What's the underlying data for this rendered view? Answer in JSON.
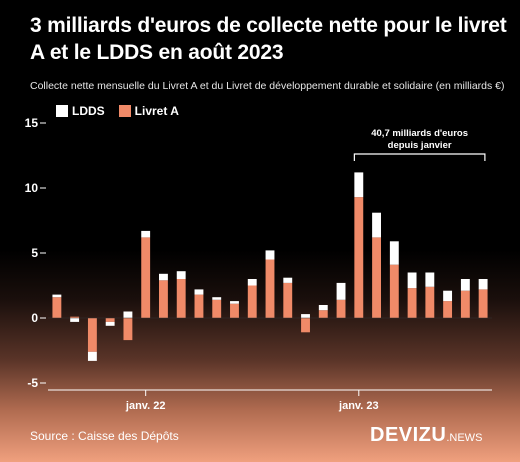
{
  "header": {
    "title": "3 milliards d'euros de collecte nette pour le livret A et le LDDS en août 2023",
    "subtitle": "Collecte nette mensuelle du Livret A et du Livret de développement durable et solidaire (en milliards €)"
  },
  "footer": {
    "source": "Source : Caisse des Dépôts",
    "logo_main": "DEVIZU",
    "logo_suffix": ".NEWS"
  },
  "colors": {
    "livret_a": "#f08a68",
    "ldds": "#ffffff",
    "axis_text": "#ffffff"
  },
  "chart_data": {
    "type": "bar",
    "stacked": true,
    "categories": [
      "2021-08",
      "2021-09",
      "2021-10",
      "2021-11",
      "2021-12",
      "2022-01",
      "2022-02",
      "2022-03",
      "2022-04",
      "2022-05",
      "2022-06",
      "2022-07",
      "2022-08",
      "2022-09",
      "2022-10",
      "2022-11",
      "2022-12",
      "2023-01",
      "2023-02",
      "2023-03",
      "2023-04",
      "2023-05",
      "2023-06",
      "2023-07",
      "2023-08"
    ],
    "series": [
      {
        "name": "Livret A",
        "values": [
          1.6,
          0.1,
          -2.6,
          -0.3,
          -1.7,
          6.2,
          2.9,
          3.0,
          1.8,
          1.4,
          1.1,
          2.5,
          4.5,
          2.7,
          -1.1,
          0.6,
          1.4,
          9.3,
          6.2,
          4.1,
          2.3,
          2.4,
          1.3,
          2.1,
          2.2
        ]
      },
      {
        "name": "LDDS",
        "values": [
          0.2,
          -0.3,
          -0.7,
          -0.3,
          0.5,
          0.5,
          0.5,
          0.6,
          0.4,
          0.2,
          0.2,
          0.5,
          0.7,
          0.4,
          0.3,
          0.4,
          1.3,
          1.9,
          1.9,
          1.8,
          1.2,
          1.1,
          0.8,
          0.9,
          0.8
        ]
      }
    ],
    "y_ticks": [
      "15",
      "10",
      "5",
      "0",
      "-5"
    ],
    "ylim": [
      -5,
      15
    ],
    "x_tick_labels": [
      {
        "label": "janv. 22",
        "category": "2022-01"
      },
      {
        "label": "janv. 23",
        "category": "2023-01"
      }
    ],
    "annotation": {
      "text_line1": "40,7 milliards d'euros",
      "text_line2": "depuis janvier",
      "from": "2023-01",
      "to": "2023-08"
    },
    "legend": [
      "LDDS",
      "Livret A"
    ],
    "legend_position": "top-left",
    "grid": false
  }
}
